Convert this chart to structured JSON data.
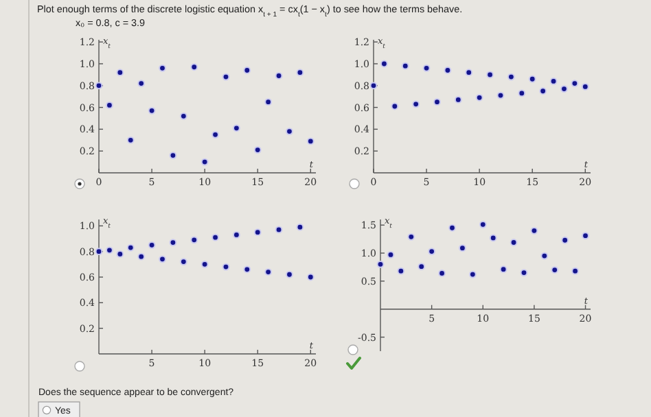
{
  "chart_data": [
    {
      "type": "scatter",
      "title": "Plot enough terms of the discrete logistic equation x$_{t + 1}$ = cx$_{t}$(1 − x$_{t}$) to see how the terms behave.",
      "subtitle": "x₀ = 0.8,  c = 3.9",
      "xlabel": "t",
      "ylabel": "x$_{t}$",
      "marker": "circle",
      "color": "#14148c",
      "x": [
        0,
        1,
        2,
        3,
        4,
        5,
        6,
        7,
        8,
        9,
        10,
        11,
        12,
        13,
        14,
        15,
        16,
        17,
        18,
        19,
        20
      ],
      "values": [
        0.8,
        0.62,
        0.92,
        0.3,
        0.82,
        0.57,
        0.96,
        0.16,
        0.52,
        0.97,
        0.1,
        0.35,
        0.88,
        0.41,
        0.94,
        0.21,
        0.65,
        0.89,
        0.38,
        0.92,
        0.29
      ],
      "xlim": [
        0,
        20.5
      ],
      "ylim": [
        0,
        1.22
      ],
      "xticks": [
        0,
        5,
        10,
        15,
        20
      ],
      "yticks": [
        {
          "value": 0.2,
          "label": "0.2"
        },
        {
          "value": 0.4,
          "label": "0.4"
        },
        {
          "value": 0.6,
          "label": "0.6"
        },
        {
          "value": 0.8,
          "label": "0.8"
        },
        {
          "value": 1,
          "label": "1.0"
        },
        {
          "value": 1.2,
          "label": "1.2"
        }
      ]
    },
    {
      "type": "scatter",
      "xlabel": "t",
      "ylabel": "x$_{t}$",
      "marker": "circle",
      "color": "#14148c",
      "x": [
        0,
        1,
        2,
        3,
        4,
        5,
        6,
        7,
        8,
        9,
        10,
        11,
        12,
        13,
        14,
        15,
        16,
        17,
        18,
        19,
        20
      ],
      "values": [
        0.8,
        1.0,
        0.61,
        0.98,
        0.63,
        0.96,
        0.65,
        0.94,
        0.67,
        0.92,
        0.69,
        0.9,
        0.71,
        0.88,
        0.73,
        0.86,
        0.75,
        0.84,
        0.77,
        0.82,
        0.79
      ],
      "xlim": [
        0,
        20.5
      ],
      "ylim": [
        0,
        1.22
      ],
      "xticks": [
        0,
        5,
        10,
        15,
        20
      ],
      "yticks": [
        {
          "value": 0.2,
          "label": "0.2"
        },
        {
          "value": 0.4,
          "label": "0.4"
        },
        {
          "value": 0.6,
          "label": "0.6"
        },
        {
          "value": 0.8,
          "label": "0.8"
        },
        {
          "value": 1,
          "label": "1.0"
        },
        {
          "value": 1.2,
          "label": "1.2"
        }
      ]
    },
    {
      "type": "scatter",
      "xlabel": "t",
      "ylabel": "x$_{t}$",
      "marker": "circle",
      "color": "#14148c",
      "x": [
        0,
        1,
        2,
        3,
        4,
        5,
        6,
        7,
        8,
        9,
        10,
        11,
        12,
        13,
        14,
        15,
        16,
        17,
        18,
        19,
        20
      ],
      "values": [
        0.8,
        0.81,
        0.78,
        0.83,
        0.76,
        0.85,
        0.74,
        0.87,
        0.72,
        0.89,
        0.7,
        0.91,
        0.68,
        0.93,
        0.66,
        0.95,
        0.64,
        0.97,
        0.62,
        0.99,
        0.6
      ],
      "xlim": [
        0,
        20.5
      ],
      "ylim": [
        0,
        1.05
      ],
      "xticks": [
        5,
        10,
        15,
        20
      ],
      "yticks": [
        {
          "value": 0.2,
          "label": "0.2"
        },
        {
          "value": 0.4,
          "label": "0.4"
        },
        {
          "value": 0.6,
          "label": "0.6"
        },
        {
          "value": 0.8,
          "label": "0.8"
        },
        {
          "value": 1,
          "label": "1.0"
        }
      ]
    },
    {
      "type": "scatter",
      "xlabel": "t",
      "ylabel": "x$_{t}$",
      "marker": "circle",
      "color": "#14148c",
      "x": [
        0,
        1,
        2,
        3,
        4,
        5,
        6,
        7,
        8,
        9,
        10,
        11,
        12,
        13,
        14,
        15,
        16,
        17,
        18,
        19,
        20
      ],
      "values": [
        0.8,
        0.97,
        0.68,
        1.29,
        0.76,
        1.03,
        0.64,
        1.45,
        1.09,
        0.62,
        1.51,
        1.27,
        0.71,
        1.19,
        0.65,
        1.4,
        0.95,
        0.7,
        1.23,
        0.68,
        1.31
      ],
      "xlim": [
        0,
        20.5
      ],
      "ylim": [
        -0.75,
        1.6
      ],
      "xticks": [
        5,
        10,
        15,
        20
      ],
      "yticks": [
        {
          "value": -0.5,
          "label": "-0.5"
        },
        {
          "value": 0.5,
          "label": "0.5"
        },
        {
          "value": 1,
          "label": "1.0"
        },
        {
          "value": 1.5,
          "label": "1.5"
        }
      ],
      "annotations": [
        "Does the sequence appear to be convergent?",
        "Yes"
      ]
    }
  ]
}
